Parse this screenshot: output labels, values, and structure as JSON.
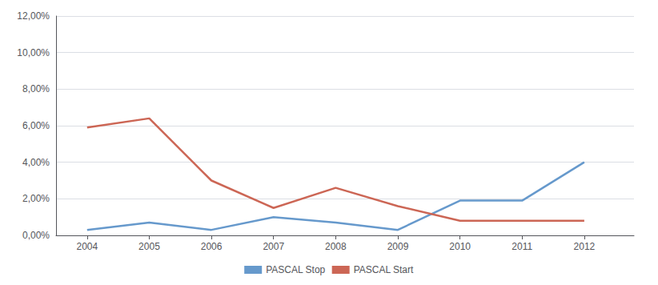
{
  "chart_data": {
    "type": "line",
    "x": [
      2004,
      2005,
      2006,
      2007,
      2008,
      2009,
      2010,
      2011,
      2012
    ],
    "series": [
      {
        "name": "PASCAL Stop",
        "color": "#6699CC",
        "values": [
          0.003,
          0.007,
          0.003,
          0.01,
          0.007,
          0.003,
          0.019,
          0.019,
          0.04
        ]
      },
      {
        "name": "PASCAL Start",
        "color": "#CC6655",
        "values": [
          0.059,
          0.064,
          0.03,
          0.015,
          0.026,
          0.016,
          0.008,
          0.008,
          0.008
        ]
      }
    ],
    "xlim": [
      2003.5,
      2012.8
    ],
    "xticks": [
      2004,
      2005,
      2006,
      2007,
      2008,
      2009,
      2010,
      2011,
      2012
    ],
    "ylim": [
      0,
      0.12
    ],
    "yticks": [
      {
        "value": 0.0,
        "label": "0,00%"
      },
      {
        "value": 0.02,
        "label": "2,00%"
      },
      {
        "value": 0.04,
        "label": "4,00%"
      },
      {
        "value": 0.06,
        "label": "6,00%"
      },
      {
        "value": 0.08,
        "label": "8,00%"
      },
      {
        "value": 0.1,
        "label": "10,00%"
      },
      {
        "value": 0.12,
        "label": "12,00%"
      }
    ],
    "grid": true,
    "legend": "bottom"
  }
}
